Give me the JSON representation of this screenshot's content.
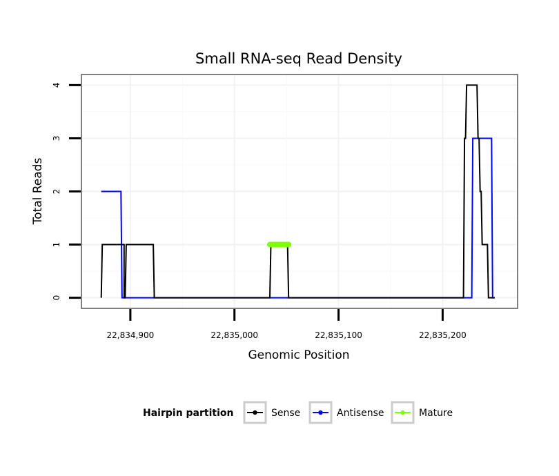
{
  "chart_data": {
    "type": "line",
    "title": "Small RNA-seq Read Density",
    "xlabel": "Genomic Position",
    "ylabel": "Total Reads",
    "xlim": [
      22834853,
      22835272
    ],
    "ylim": [
      -0.2,
      4.2
    ],
    "x_ticks": [
      22834900,
      22835000,
      22835100,
      22835200
    ],
    "x_tick_labels": [
      "22,834,900",
      "22,835,000",
      "22,835,100",
      "22,835,200"
    ],
    "y_ticks": [
      0,
      1,
      2,
      3,
      4
    ],
    "y_tick_labels": [
      "0",
      "1",
      "2",
      "3",
      "4"
    ],
    "grid": true,
    "legend": {
      "title": "Hairpin partition",
      "position": "bottom",
      "entries": [
        "Sense",
        "Antisense",
        "Mature"
      ]
    },
    "series": [
      {
        "name": "Sense",
        "color": "#000000",
        "x": [
          22834872,
          22834873,
          22834894,
          22834894,
          22834895,
          22834896,
          22834922,
          22834923,
          22835034,
          22835035,
          22835051,
          22835052,
          22835220,
          22835221,
          22835222,
          22835223,
          22835233,
          22835234,
          22835235,
          22835236,
          22835237,
          22835238,
          22835243,
          22835244,
          22835250
        ],
        "y": [
          0,
          1,
          1,
          0,
          0,
          1,
          1,
          0,
          0,
          1,
          1,
          0,
          0,
          3,
          3,
          4,
          4,
          3,
          3,
          2,
          2,
          1,
          1,
          0,
          0
        ]
      },
      {
        "name": "Antisense",
        "color": "#0000ff",
        "x": [
          22834872,
          22834891,
          22834892,
          22835228,
          22835229,
          22835247,
          22835248,
          22835250
        ],
        "y": [
          2,
          2,
          0,
          0,
          3,
          3,
          0,
          0
        ]
      },
      {
        "name": "Mature",
        "color": "#7fff00",
        "x": [
          22835034,
          22835052
        ],
        "y": [
          1,
          1
        ]
      }
    ]
  }
}
